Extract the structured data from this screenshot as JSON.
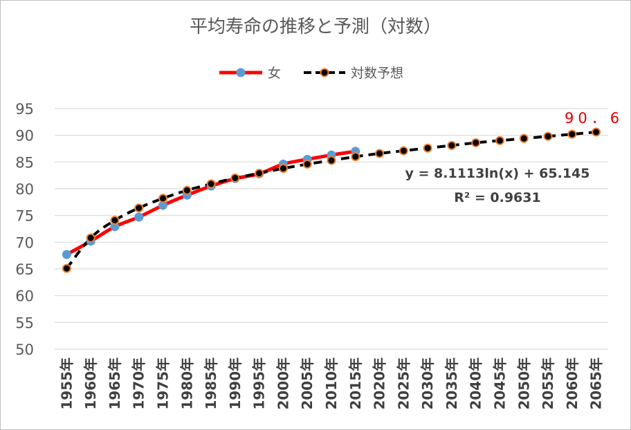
{
  "chart_data": {
    "type": "line",
    "title": "平均寿命の推移と予測（対数）",
    "categories": [
      "1955年",
      "1960年",
      "1965年",
      "1970年",
      "1975年",
      "1980年",
      "1985年",
      "1990年",
      "1995年",
      "2000年",
      "2005年",
      "2010年",
      "2015年",
      "2020年",
      "2025年",
      "2030年",
      "2035年",
      "2040年",
      "2045年",
      "2050年",
      "2055年",
      "2060年",
      "2065年"
    ],
    "series": [
      {
        "name": "女",
        "color": "#ff0000",
        "marker_color": "#5b9bd5",
        "values": [
          67.7,
          70.2,
          72.9,
          74.7,
          76.9,
          78.8,
          80.5,
          81.9,
          82.8,
          84.6,
          85.5,
          86.3,
          87.0,
          null,
          null,
          null,
          null,
          null,
          null,
          null,
          null,
          null,
          null
        ]
      },
      {
        "name": "対数予想",
        "color": "#000000",
        "marker_color": "#ed7d31",
        "values": [
          65.1,
          70.8,
          74.1,
          76.4,
          78.2,
          79.7,
          80.9,
          82.0,
          82.9,
          83.8,
          84.6,
          85.3,
          86.0,
          86.6,
          87.1,
          87.6,
          88.1,
          88.6,
          89.0,
          89.4,
          89.8,
          90.2,
          90.6
        ]
      }
    ],
    "ylim": [
      50,
      95
    ],
    "yticks": [
      50,
      55,
      60,
      65,
      70,
      75,
      80,
      85,
      90,
      95
    ],
    "grid": true,
    "legend": "top-center",
    "trendline_equation": "y = 8.1113ln(x) + 65.145",
    "r_squared": "R² = 0.9631",
    "last_label": "90．6"
  }
}
